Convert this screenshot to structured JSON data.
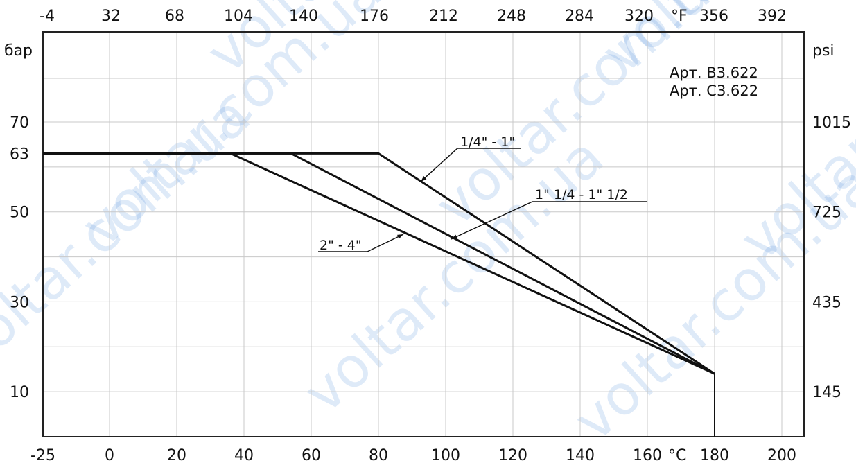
{
  "chart_data": {
    "type": "line",
    "x_unit": "°C",
    "x_top_unit": "°F",
    "y_unit": "бар",
    "y_right_unit": "psi",
    "xlim": [
      -25,
      205
    ],
    "ylim": [
      0,
      70
    ],
    "grid": true,
    "x_ticks": [
      "-25",
      "0",
      "20",
      "40",
      "60",
      "80",
      "100",
      "120",
      "140",
      "160",
      "180",
      "200"
    ],
    "x_top_ticks": [
      "-4",
      "32",
      "68",
      "104",
      "140",
      "176",
      "212",
      "248",
      "284",
      "320",
      "356",
      "392"
    ],
    "y_ticks": [
      {
        "value": 10,
        "label": "10"
      },
      {
        "value": 30,
        "label": "30"
      },
      {
        "value": 50,
        "label": "50"
      },
      {
        "value": 63,
        "label": "63"
      },
      {
        "value": 70,
        "label": "70"
      }
    ],
    "y_right_ticks": [
      {
        "value": 10,
        "label": "145"
      },
      {
        "value": 30,
        "label": "435"
      },
      {
        "value": 50,
        "label": "725"
      },
      {
        "value": 70,
        "label": "1015"
      }
    ],
    "series": [
      {
        "name": "1/4\" - 1\"",
        "x": [
          -25,
          80,
          180
        ],
        "y": [
          63,
          63,
          14
        ]
      },
      {
        "name": "1\" 1/4 - 1\" 1/2",
        "x": [
          -25,
          54,
          180
        ],
        "y": [
          63,
          63,
          14
        ]
      },
      {
        "name": "2\"  - 4\"",
        "x": [
          -25,
          36,
          180
        ],
        "y": [
          63,
          63,
          14
        ]
      }
    ],
    "drop_line": {
      "x": 180,
      "y": [
        14,
        0
      ]
    },
    "annotations": [
      "Арт.  В3.622",
      "Арт.  С3.622"
    ]
  },
  "watermark": "voltar.com.ua"
}
